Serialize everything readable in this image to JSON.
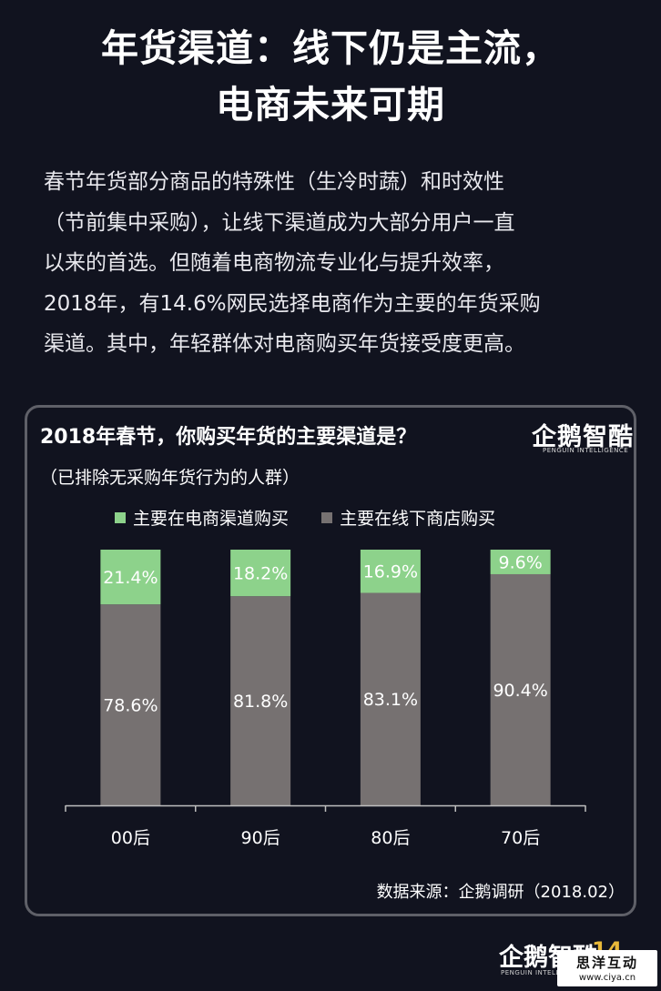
{
  "title_lines": [
    "年货渠道：线下仍是主流，",
    "电商未来可期"
  ],
  "body_lines": [
    "春节年货部分商品的特殊性（生冷时蔬）和时效性",
    "（节前集中采购），让线下渠道成为大部分用户一直",
    "以来的首选。但随着电商物流专业化与提升效率，",
    "2018年，有14.6%网民选择电商作为主要的年货采购",
    "渠道。其中，年轻群体对电商购买年货接受度更高。"
  ],
  "chart_data": {
    "type": "bar",
    "stacked": true,
    "title": "2018年春节，你购买年货的主要渠道是？",
    "subtitle": "（已排除无采购年货行为的人群）",
    "categories": [
      "00后",
      "90后",
      "80后",
      "70后"
    ],
    "series": [
      {
        "name": "主要在电商渠道购买",
        "values": [
          21.4,
          18.2,
          16.9,
          9.6
        ],
        "labels": [
          "21.4%",
          "18.2%",
          "16.9%",
          "9.6%"
        ],
        "color": "#8dd28b"
      },
      {
        "name": "主要在线下商店购买",
        "values": [
          78.6,
          81.8,
          83.1,
          90.4
        ],
        "labels": [
          "78.6%",
          "81.8%",
          "83.1%",
          "90.4%"
        ],
        "color": "#767171"
      }
    ],
    "ylim": [
      0,
      100
    ],
    "grid": false,
    "legend_position": "top",
    "source": "数据来源：企鹅调研（2018.02）"
  },
  "logo": {
    "main": "企鹅智酷",
    "sub": "PENGUIN INTELLIGENCE"
  },
  "footer": {
    "logo_main": "企鹅智酷",
    "logo_sub": "PENGUIN INTELLIGENCE",
    "page_number": "14",
    "watermark_main": "思洋互动",
    "watermark_sub": "www.ciya.cn"
  },
  "colors": {
    "background": "#11131f",
    "online": "#8dd28b",
    "offline": "#767171",
    "accent": "#e9b93a"
  }
}
